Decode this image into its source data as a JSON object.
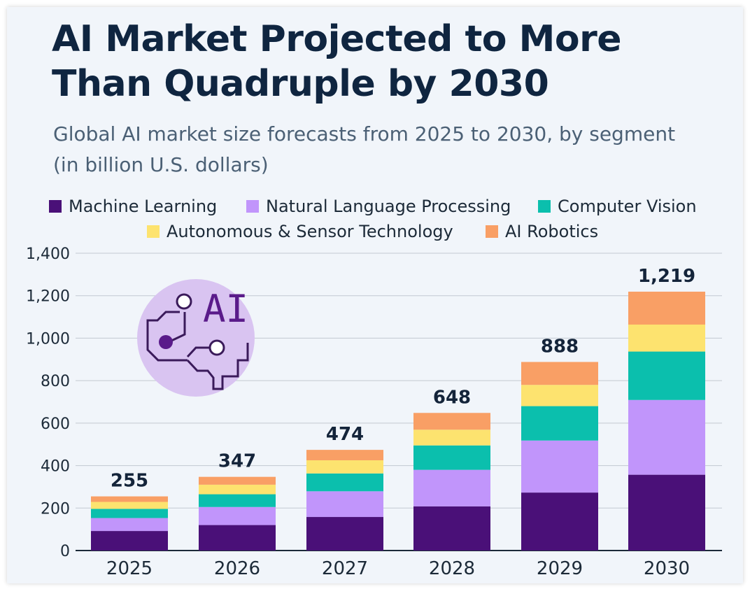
{
  "title": "AI Market Projected to More Than Quadruple by 2030",
  "subtitle": "Global AI market size forecasts from 2025 to 2030, by segment (in billion U.S. dollars)",
  "illustration": {
    "icon": "ai-brain-icon",
    "text": "AI"
  },
  "colors": {
    "background": "#f1f5fa",
    "title": "#0f2540",
    "subtitle": "#4b6075",
    "grid": "#c2c9d1",
    "axis": "#1c2a38",
    "icon_circle": "#d9c4f1",
    "icon_stroke": "#3a1a5a",
    "icon_text": "#5a1b8a"
  },
  "chart_data": {
    "type": "bar",
    "stacked": true,
    "title": "AI Market Projected to More Than Quadruple by 2030",
    "subtitle": "Global AI market size forecasts from 2025 to 2030, by segment (in billion U.S. dollars)",
    "xlabel": "",
    "ylabel": "",
    "ylim": [
      0,
      1400
    ],
    "yticks": [
      0,
      200,
      400,
      600,
      800,
      1000,
      1200,
      1400
    ],
    "ytick_labels": [
      "0",
      "200",
      "400",
      "600",
      "800",
      "1,000",
      "1,200",
      "1,400"
    ],
    "grid": true,
    "legend_position": "top",
    "categories": [
      "2025",
      "2026",
      "2027",
      "2028",
      "2029",
      "2030"
    ],
    "series": [
      {
        "name": "Machine Learning",
        "color": "#4a1078",
        "values": [
          92,
          120,
          158,
          208,
          273,
          357
        ]
      },
      {
        "name": "Natural Language Processing",
        "color": "#c195fb",
        "values": [
          61,
          85,
          121,
          172,
          245,
          352
        ]
      },
      {
        "name": "Computer Vision",
        "color": "#0bbfad",
        "values": [
          43,
          60,
          84,
          115,
          162,
          228
        ]
      },
      {
        "name": "Autonomous & Sensor Technology",
        "color": "#fde36f",
        "values": [
          33,
          45,
          62,
          74,
          100,
          127
        ]
      },
      {
        "name": "AI Robotics",
        "color": "#f99f65",
        "values": [
          26,
          37,
          49,
          79,
          108,
          155
        ]
      }
    ],
    "totals": [
      255,
      347,
      474,
      648,
      888,
      1219
    ],
    "total_labels": [
      "255",
      "347",
      "474",
      "648",
      "888",
      "1,219"
    ]
  }
}
